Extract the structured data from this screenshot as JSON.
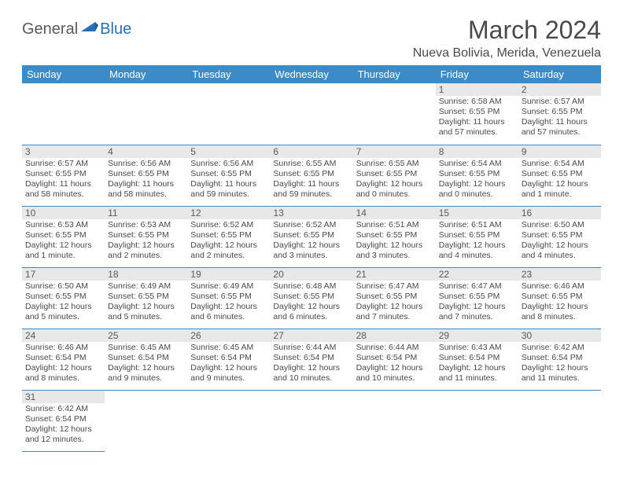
{
  "logo": {
    "general": "General",
    "blue": "Blue"
  },
  "title": "March 2024",
  "location": "Nueva Bolivia, Merida, Venezuela",
  "colors": {
    "header_bg": "#3b8bc9",
    "header_fg": "#ffffff",
    "daynum_bg": "#e8e8e8",
    "text": "#4a4a4a",
    "logo_blue": "#2a6fb5"
  },
  "weekdays": [
    "Sunday",
    "Monday",
    "Tuesday",
    "Wednesday",
    "Thursday",
    "Friday",
    "Saturday"
  ],
  "days": {
    "1": {
      "sunrise": "6:58 AM",
      "sunset": "6:55 PM",
      "daylight": "11 hours and 57 minutes."
    },
    "2": {
      "sunrise": "6:57 AM",
      "sunset": "6:55 PM",
      "daylight": "11 hours and 57 minutes."
    },
    "3": {
      "sunrise": "6:57 AM",
      "sunset": "6:55 PM",
      "daylight": "11 hours and 58 minutes."
    },
    "4": {
      "sunrise": "6:56 AM",
      "sunset": "6:55 PM",
      "daylight": "11 hours and 58 minutes."
    },
    "5": {
      "sunrise": "6:56 AM",
      "sunset": "6:55 PM",
      "daylight": "11 hours and 59 minutes."
    },
    "6": {
      "sunrise": "6:55 AM",
      "sunset": "6:55 PM",
      "daylight": "11 hours and 59 minutes."
    },
    "7": {
      "sunrise": "6:55 AM",
      "sunset": "6:55 PM",
      "daylight": "12 hours and 0 minutes."
    },
    "8": {
      "sunrise": "6:54 AM",
      "sunset": "6:55 PM",
      "daylight": "12 hours and 0 minutes."
    },
    "9": {
      "sunrise": "6:54 AM",
      "sunset": "6:55 PM",
      "daylight": "12 hours and 1 minute."
    },
    "10": {
      "sunrise": "6:53 AM",
      "sunset": "6:55 PM",
      "daylight": "12 hours and 1 minute."
    },
    "11": {
      "sunrise": "6:53 AM",
      "sunset": "6:55 PM",
      "daylight": "12 hours and 2 minutes."
    },
    "12": {
      "sunrise": "6:52 AM",
      "sunset": "6:55 PM",
      "daylight": "12 hours and 2 minutes."
    },
    "13": {
      "sunrise": "6:52 AM",
      "sunset": "6:55 PM",
      "daylight": "12 hours and 3 minutes."
    },
    "14": {
      "sunrise": "6:51 AM",
      "sunset": "6:55 PM",
      "daylight": "12 hours and 3 minutes."
    },
    "15": {
      "sunrise": "6:51 AM",
      "sunset": "6:55 PM",
      "daylight": "12 hours and 4 minutes."
    },
    "16": {
      "sunrise": "6:50 AM",
      "sunset": "6:55 PM",
      "daylight": "12 hours and 4 minutes."
    },
    "17": {
      "sunrise": "6:50 AM",
      "sunset": "6:55 PM",
      "daylight": "12 hours and 5 minutes."
    },
    "18": {
      "sunrise": "6:49 AM",
      "sunset": "6:55 PM",
      "daylight": "12 hours and 5 minutes."
    },
    "19": {
      "sunrise": "6:49 AM",
      "sunset": "6:55 PM",
      "daylight": "12 hours and 6 minutes."
    },
    "20": {
      "sunrise": "6:48 AM",
      "sunset": "6:55 PM",
      "daylight": "12 hours and 6 minutes."
    },
    "21": {
      "sunrise": "6:47 AM",
      "sunset": "6:55 PM",
      "daylight": "12 hours and 7 minutes."
    },
    "22": {
      "sunrise": "6:47 AM",
      "sunset": "6:55 PM",
      "daylight": "12 hours and 7 minutes."
    },
    "23": {
      "sunrise": "6:46 AM",
      "sunset": "6:55 PM",
      "daylight": "12 hours and 8 minutes."
    },
    "24": {
      "sunrise": "6:46 AM",
      "sunset": "6:54 PM",
      "daylight": "12 hours and 8 minutes."
    },
    "25": {
      "sunrise": "6:45 AM",
      "sunset": "6:54 PM",
      "daylight": "12 hours and 9 minutes."
    },
    "26": {
      "sunrise": "6:45 AM",
      "sunset": "6:54 PM",
      "daylight": "12 hours and 9 minutes."
    },
    "27": {
      "sunrise": "6:44 AM",
      "sunset": "6:54 PM",
      "daylight": "12 hours and 10 minutes."
    },
    "28": {
      "sunrise": "6:44 AM",
      "sunset": "6:54 PM",
      "daylight": "12 hours and 10 minutes."
    },
    "29": {
      "sunrise": "6:43 AM",
      "sunset": "6:54 PM",
      "daylight": "12 hours and 11 minutes."
    },
    "30": {
      "sunrise": "6:42 AM",
      "sunset": "6:54 PM",
      "daylight": "12 hours and 11 minutes."
    },
    "31": {
      "sunrise": "6:42 AM",
      "sunset": "6:54 PM",
      "daylight": "12 hours and 12 minutes."
    }
  },
  "labels": {
    "sunrise": "Sunrise: ",
    "sunset": "Sunset: ",
    "daylight": "Daylight: "
  },
  "grid": [
    [
      null,
      null,
      null,
      null,
      null,
      "1",
      "2"
    ],
    [
      "3",
      "4",
      "5",
      "6",
      "7",
      "8",
      "9"
    ],
    [
      "10",
      "11",
      "12",
      "13",
      "14",
      "15",
      "16"
    ],
    [
      "17",
      "18",
      "19",
      "20",
      "21",
      "22",
      "23"
    ],
    [
      "24",
      "25",
      "26",
      "27",
      "28",
      "29",
      "30"
    ],
    [
      "31",
      null,
      null,
      null,
      null,
      null,
      null
    ]
  ]
}
